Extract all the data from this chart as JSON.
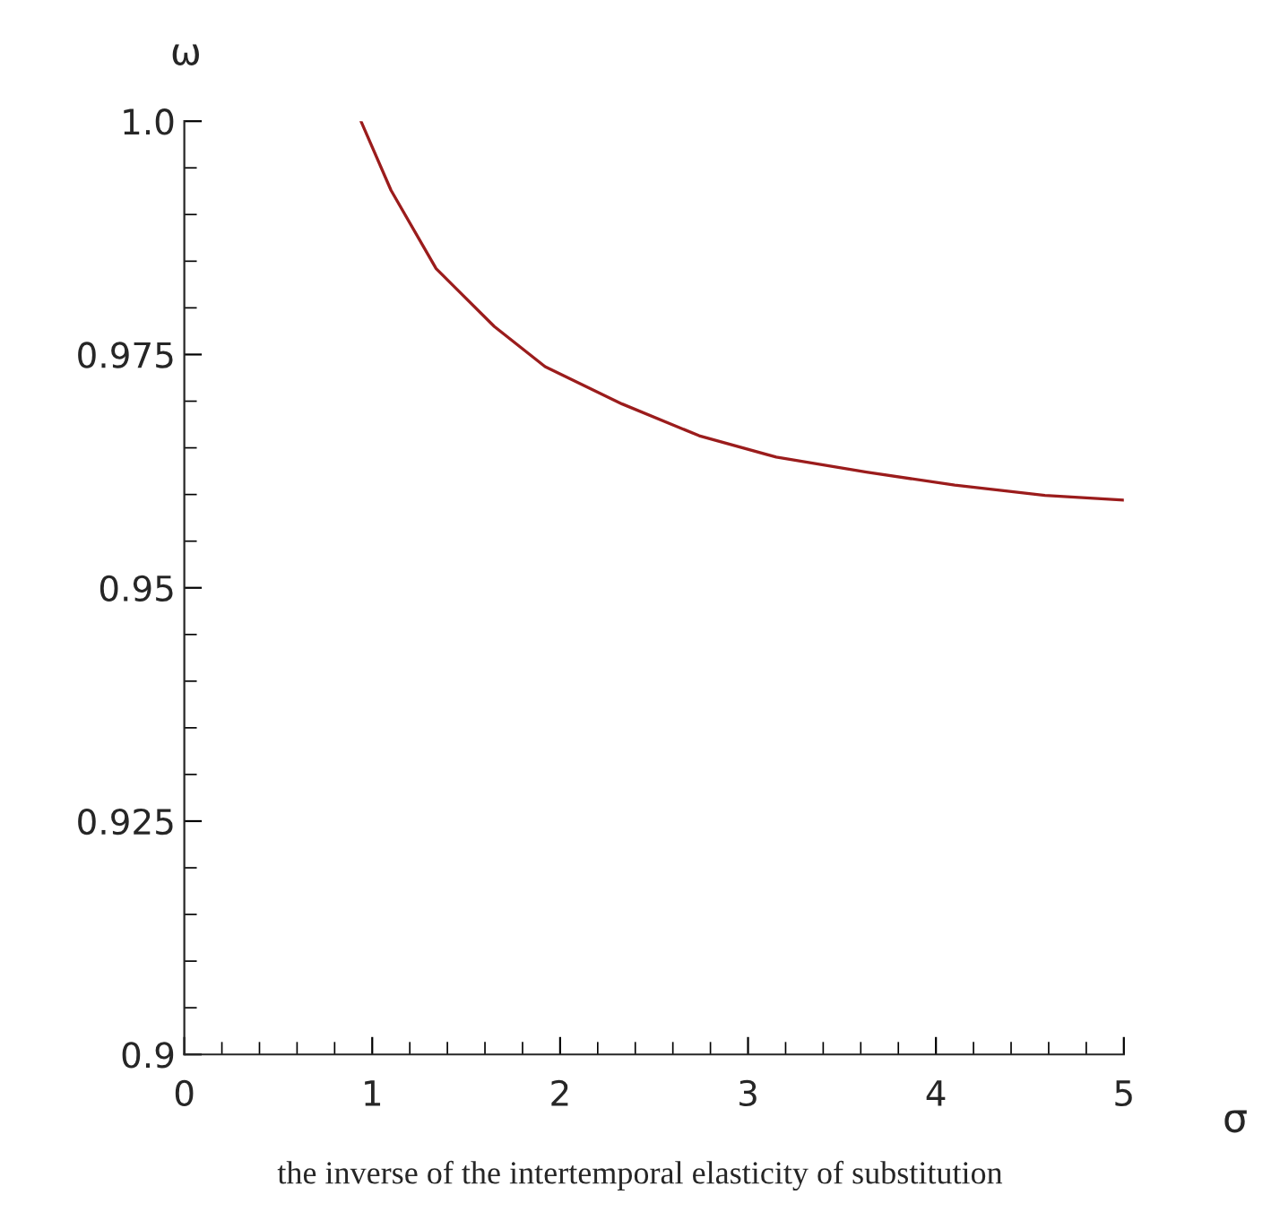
{
  "chart_data": {
    "type": "line",
    "xlabel": "σ",
    "ylabel": "ω",
    "annotations": [
      "the inverse of the intertemporal elasticity of substitution"
    ],
    "series": [
      {
        "color": "#9b1c1c",
        "x": [
          0.94,
          1.1,
          1.34,
          1.65,
          1.92,
          2.33,
          2.74,
          3.15,
          3.63,
          4.1,
          4.58,
          5.0
        ],
        "values": [
          1.0,
          0.9926,
          0.9842,
          0.978,
          0.9737,
          0.9697,
          0.9663,
          0.964,
          0.9624,
          0.961,
          0.9599,
          0.9594
        ]
      }
    ],
    "xlim": [
      0,
      5
    ],
    "xticks": [
      0,
      1,
      2,
      3,
      4,
      5
    ],
    "ylim": [
      0.9,
      1.0
    ],
    "yticks": [
      0.9,
      0.925,
      0.95,
      0.975,
      {
        "value": 1.0,
        "label": "1.0"
      }
    ],
    "grid": false,
    "legend": false,
    "marker": "none",
    "line_style": "solid"
  }
}
